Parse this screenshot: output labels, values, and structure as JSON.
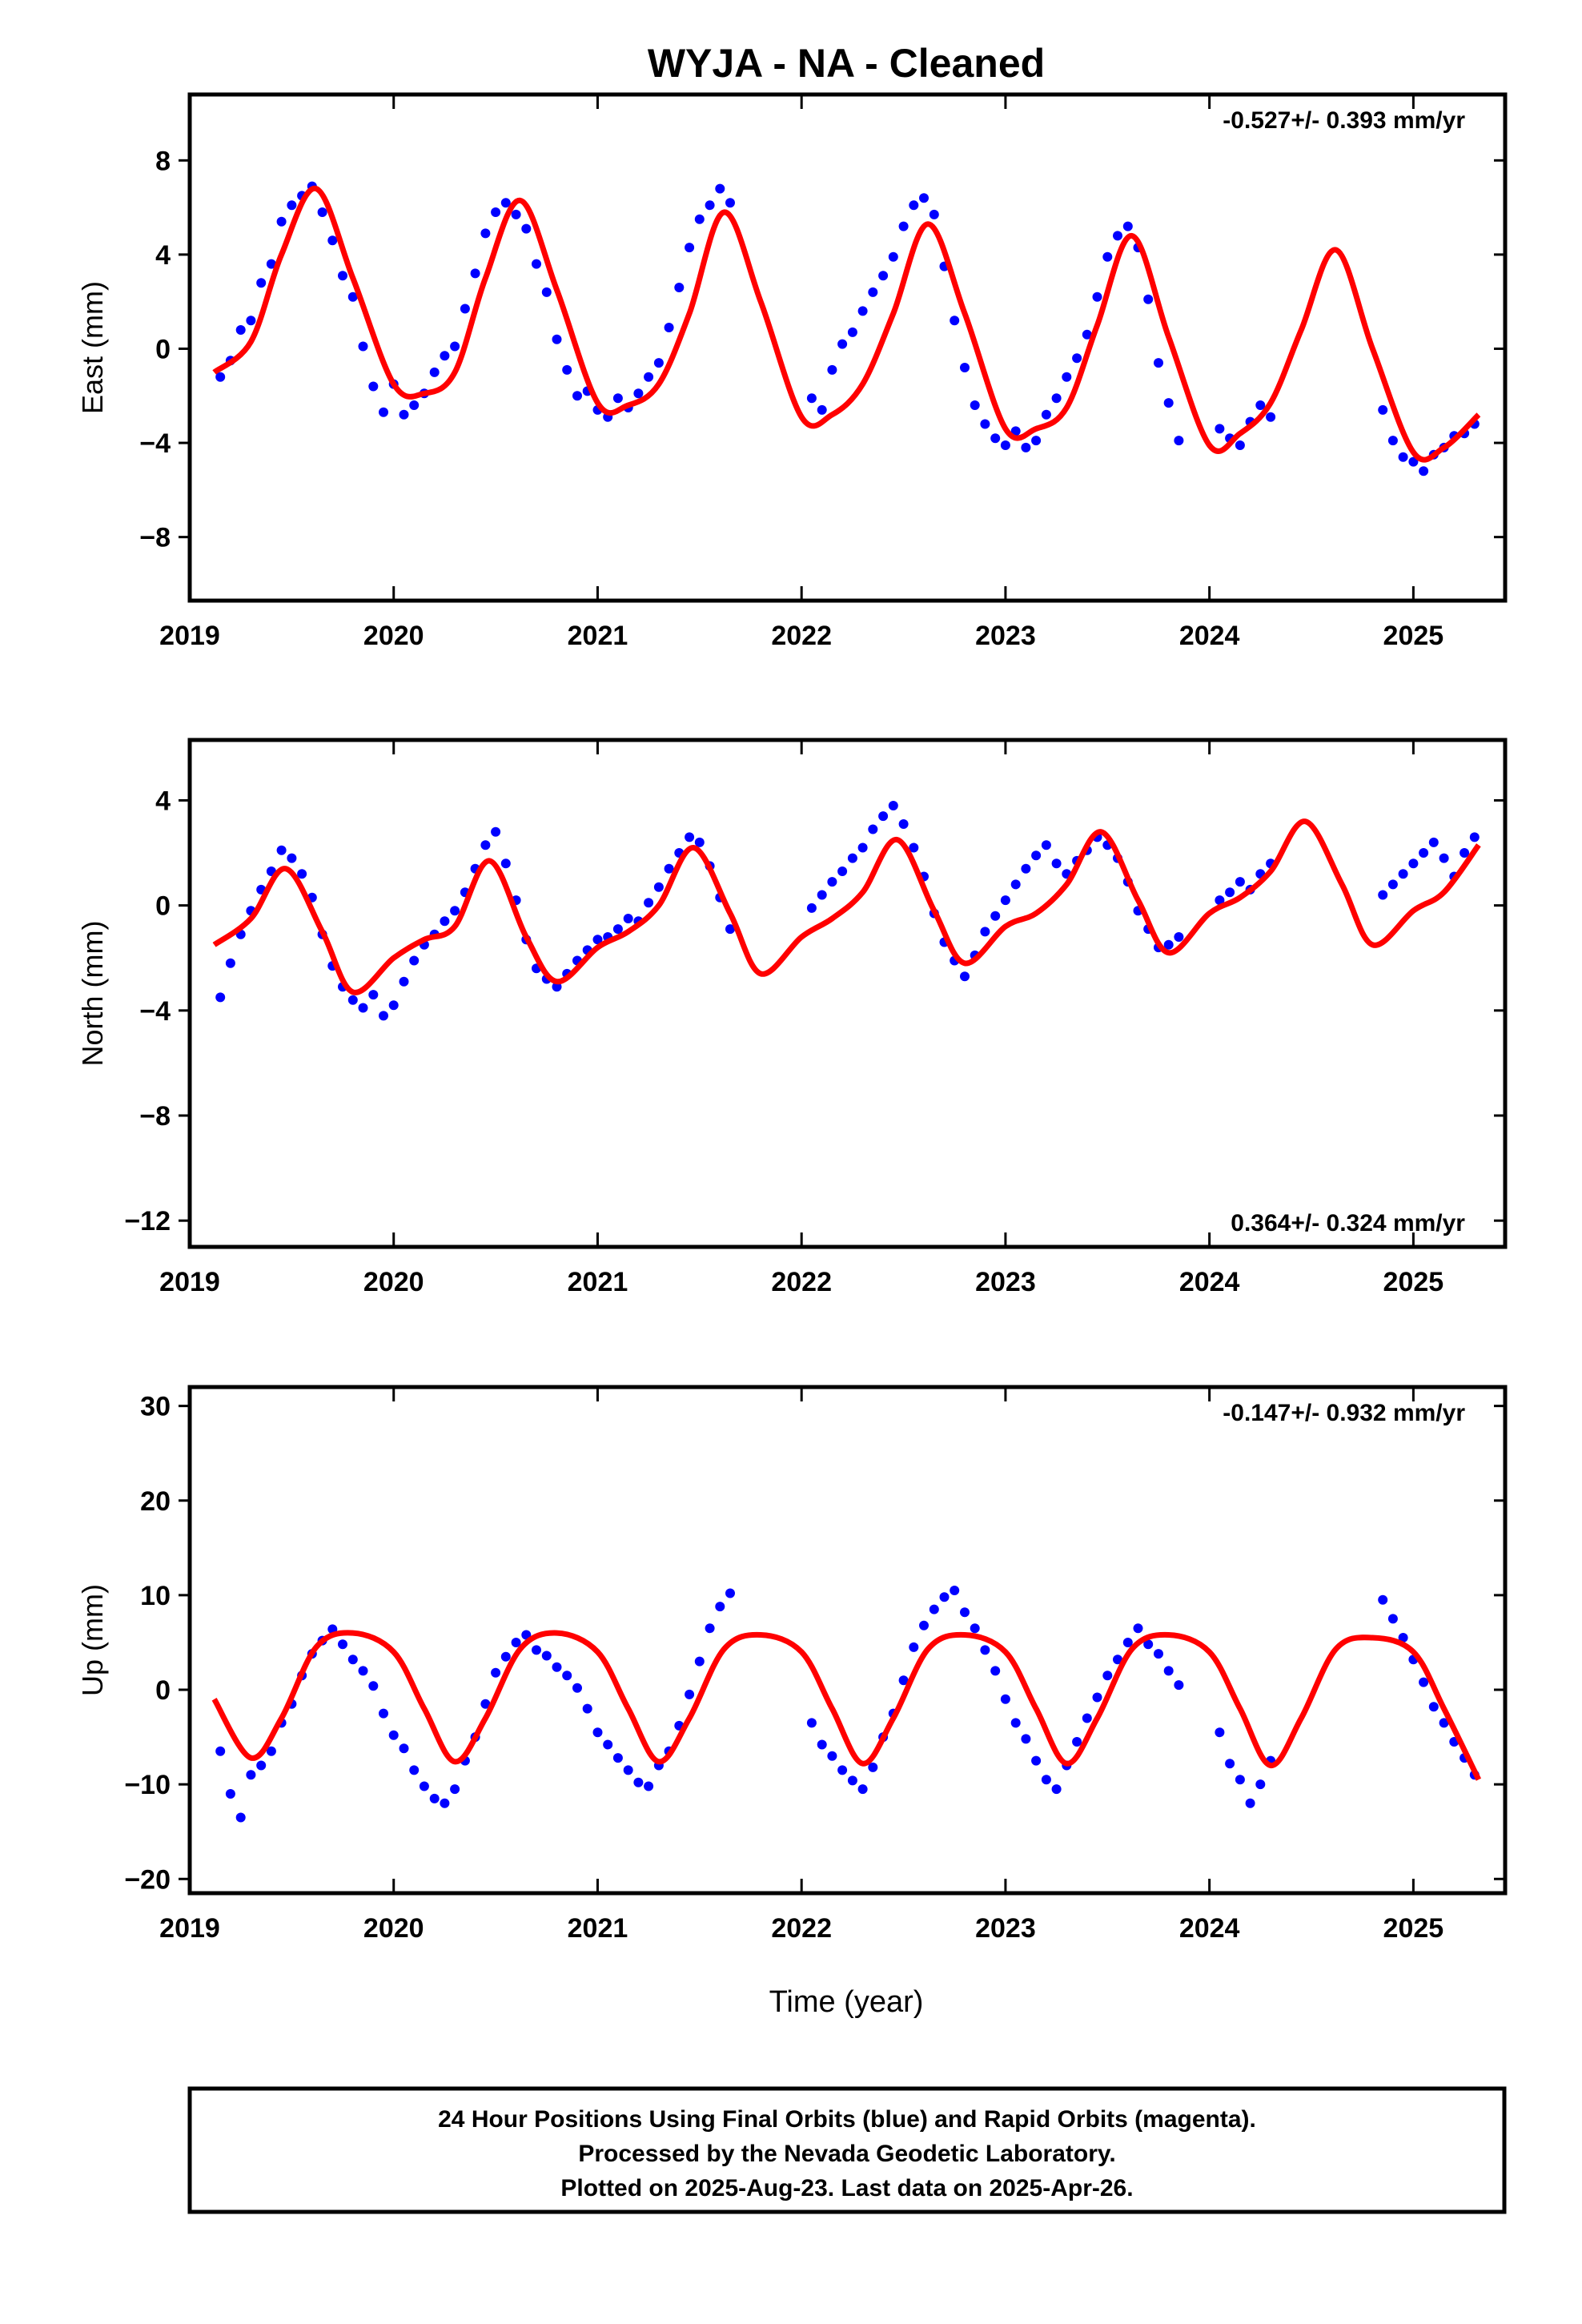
{
  "title": "WYJA  - NA - Cleaned",
  "xlabel": "Time (year)",
  "footer": {
    "line1": "24 Hour Positions Using Final Orbits (blue) and Rapid Orbits (magenta).",
    "line2": "Processed by the Nevada Geodetic Laboratory.",
    "line3": "Plotted on 2025-Aug-23. Last data on 2025-Apr-26."
  },
  "colors": {
    "points": "#0000ff",
    "model": "#ff0000",
    "axes": "#000000"
  },
  "chart_data": [
    {
      "type": "scatter",
      "ylabel": "East (mm)",
      "rate_text": "-0.527+/- 0.393 mm/yr",
      "rate_position": "top-right",
      "xlim": [
        2019.0,
        2025.45
      ],
      "ylim": [
        -10.7,
        10.8
      ],
      "x_ticks": [
        2019,
        2020,
        2021,
        2022,
        2023,
        2024,
        2025
      ],
      "y_ticks": [
        -8,
        -4,
        0,
        4,
        8
      ],
      "y_tick_labels": [
        "−8",
        "−4",
        "0",
        "4",
        "8"
      ],
      "model": {
        "x": [
          2019.12,
          2019.3,
          2019.45,
          2019.62,
          2019.8,
          2020.0,
          2020.15,
          2020.3,
          2020.45,
          2020.62,
          2020.8,
          2021.0,
          2021.15,
          2021.3,
          2021.45,
          2021.62,
          2021.8,
          2022.0,
          2022.15,
          2022.3,
          2022.45,
          2022.62,
          2022.8,
          2023.0,
          2023.15,
          2023.3,
          2023.45,
          2023.62,
          2023.8,
          2024.0,
          2024.15,
          2024.3,
          2024.45,
          2024.62,
          2024.8,
          2025.0,
          2025.15,
          2025.32
        ],
        "y": [
          -1.0,
          0.3,
          4.0,
          6.8,
          3.0,
          -1.5,
          -1.9,
          -1.0,
          3.0,
          6.3,
          2.5,
          -2.3,
          -2.4,
          -1.5,
          1.5,
          5.8,
          2.0,
          -2.9,
          -2.8,
          -1.5,
          1.5,
          5.3,
          1.5,
          -3.4,
          -3.4,
          -2.5,
          1.0,
          4.8,
          0.5,
          -4.1,
          -3.6,
          -2.3,
          0.8,
          4.2,
          0.0,
          -4.4,
          -4.2,
          -2.8
        ]
      },
      "scatter_points": {
        "x": [
          2019.15,
          2019.2,
          2019.25,
          2019.3,
          2019.35,
          2019.4,
          2019.45,
          2019.5,
          2019.55,
          2019.6,
          2019.65,
          2019.7,
          2019.75,
          2019.8,
          2019.85,
          2019.9,
          2019.95,
          2020.0,
          2020.05,
          2020.1,
          2020.15,
          2020.2,
          2020.25,
          2020.3,
          2020.35,
          2020.4,
          2020.45,
          2020.5,
          2020.55,
          2020.6,
          2020.65,
          2020.7,
          2020.75,
          2020.8,
          2020.85,
          2020.9,
          2020.95,
          2021.0,
          2021.05,
          2021.1,
          2021.15,
          2021.2,
          2021.25,
          2021.3,
          2021.35,
          2021.4,
          2021.45,
          2021.5,
          2021.55,
          2021.6,
          2021.65,
          2022.05,
          2022.1,
          2022.15,
          2022.2,
          2022.25,
          2022.3,
          2022.35,
          2022.4,
          2022.45,
          2022.5,
          2022.55,
          2022.6,
          2022.65,
          2022.7,
          2022.75,
          2022.8,
          2022.85,
          2022.9,
          2022.95,
          2023.0,
          2023.05,
          2023.1,
          2023.15,
          2023.2,
          2023.25,
          2023.3,
          2023.35,
          2023.4,
          2023.45,
          2023.5,
          2023.55,
          2023.6,
          2023.65,
          2023.7,
          2023.75,
          2023.8,
          2023.85,
          2024.05,
          2024.1,
          2024.15,
          2024.2,
          2024.25,
          2024.3,
          2024.85,
          2024.9,
          2024.95,
          2025.0,
          2025.05,
          2025.1,
          2025.15,
          2025.2,
          2025.25,
          2025.3
        ],
        "y": [
          -1.2,
          -0.5,
          0.8,
          1.2,
          2.8,
          3.6,
          5.4,
          6.1,
          6.5,
          6.9,
          5.8,
          4.6,
          3.1,
          2.2,
          0.1,
          -1.6,
          -2.7,
          -1.5,
          -2.8,
          -2.4,
          -1.9,
          -1.0,
          -0.3,
          0.1,
          1.7,
          3.2,
          4.9,
          5.8,
          6.2,
          5.7,
          5.1,
          3.6,
          2.4,
          0.4,
          -0.9,
          -2.0,
          -1.8,
          -2.6,
          -2.9,
          -2.1,
          -2.5,
          -1.9,
          -1.2,
          -0.6,
          0.9,
          2.6,
          4.3,
          5.5,
          6.1,
          6.8,
          6.2,
          -2.1,
          -2.6,
          -0.9,
          0.2,
          0.7,
          1.6,
          2.4,
          3.1,
          3.9,
          5.2,
          6.1,
          6.4,
          5.7,
          3.5,
          1.2,
          -0.8,
          -2.4,
          -3.2,
          -3.8,
          -4.1,
          -3.5,
          -4.2,
          -3.9,
          -2.8,
          -2.1,
          -1.2,
          -0.4,
          0.6,
          2.2,
          3.9,
          4.8,
          5.2,
          4.3,
          2.1,
          -0.6,
          -2.3,
          -3.9,
          -3.4,
          -3.8,
          -4.1,
          -3.1,
          -2.4,
          -2.9,
          -2.6,
          -3.9,
          -4.6,
          -4.8,
          -5.2,
          -4.5,
          -4.2,
          -3.7,
          -3.6,
          -3.2
        ]
      }
    },
    {
      "type": "scatter",
      "ylabel": "North (mm)",
      "rate_text": "0.364+/- 0.324 mm/yr",
      "rate_position": "bottom-right",
      "xlim": [
        2019.0,
        2025.45
      ],
      "ylim": [
        -13.0,
        6.3
      ],
      "x_ticks": [
        2019,
        2020,
        2021,
        2022,
        2023,
        2024,
        2025
      ],
      "y_ticks": [
        -12,
        -8,
        -4,
        0,
        4
      ],
      "y_tick_labels": [
        "−12",
        "−8",
        "−4",
        "0",
        "4"
      ],
      "model": {
        "x": [
          2019.12,
          2019.3,
          2019.47,
          2019.65,
          2019.8,
          2020.0,
          2020.15,
          2020.3,
          2020.47,
          2020.65,
          2020.8,
          2021.0,
          2021.15,
          2021.3,
          2021.47,
          2021.65,
          2021.8,
          2022.0,
          2022.15,
          2022.3,
          2022.47,
          2022.65,
          2022.8,
          2023.0,
          2023.15,
          2023.3,
          2023.47,
          2023.65,
          2023.8,
          2024.0,
          2024.15,
          2024.3,
          2024.47,
          2024.65,
          2024.8,
          2025.0,
          2025.15,
          2025.32
        ],
        "y": [
          -1.5,
          -0.5,
          1.4,
          -1.0,
          -3.3,
          -2.0,
          -1.3,
          -0.8,
          1.7,
          -1.2,
          -2.9,
          -1.6,
          -1.0,
          0.0,
          2.2,
          -0.3,
          -2.6,
          -1.2,
          -0.5,
          0.5,
          2.5,
          -0.2,
          -2.2,
          -0.8,
          -0.3,
          0.8,
          2.8,
          0.2,
          -1.8,
          -0.3,
          0.3,
          1.3,
          3.2,
          0.8,
          -1.5,
          -0.2,
          0.5,
          2.3
        ]
      },
      "scatter_points": {
        "x": [
          2019.15,
          2019.2,
          2019.25,
          2019.3,
          2019.35,
          2019.4,
          2019.45,
          2019.5,
          2019.55,
          2019.6,
          2019.65,
          2019.7,
          2019.75,
          2019.8,
          2019.85,
          2019.9,
          2019.95,
          2020.0,
          2020.05,
          2020.1,
          2020.15,
          2020.2,
          2020.25,
          2020.3,
          2020.35,
          2020.4,
          2020.45,
          2020.5,
          2020.55,
          2020.6,
          2020.65,
          2020.7,
          2020.75,
          2020.8,
          2020.85,
          2020.9,
          2020.95,
          2021.0,
          2021.05,
          2021.1,
          2021.15,
          2021.2,
          2021.25,
          2021.3,
          2021.35,
          2021.4,
          2021.45,
          2021.5,
          2021.55,
          2021.6,
          2021.65,
          2022.05,
          2022.1,
          2022.15,
          2022.2,
          2022.25,
          2022.3,
          2022.35,
          2022.4,
          2022.45,
          2022.5,
          2022.55,
          2022.6,
          2022.65,
          2022.7,
          2022.75,
          2022.8,
          2022.85,
          2022.9,
          2022.95,
          2023.0,
          2023.05,
          2023.1,
          2023.15,
          2023.2,
          2023.25,
          2023.3,
          2023.35,
          2023.4,
          2023.45,
          2023.5,
          2023.55,
          2023.6,
          2023.65,
          2023.7,
          2023.75,
          2023.8,
          2023.85,
          2024.05,
          2024.1,
          2024.15,
          2024.2,
          2024.25,
          2024.3,
          2024.85,
          2024.9,
          2024.95,
          2025.0,
          2025.05,
          2025.1,
          2025.15,
          2025.2,
          2025.25,
          2025.3
        ],
        "y": [
          -3.5,
          -2.2,
          -1.1,
          -0.2,
          0.6,
          1.3,
          2.1,
          1.8,
          1.2,
          0.3,
          -1.1,
          -2.3,
          -3.1,
          -3.6,
          -3.9,
          -3.4,
          -4.2,
          -3.8,
          -2.9,
          -2.1,
          -1.5,
          -1.1,
          -0.6,
          -0.2,
          0.5,
          1.4,
          2.3,
          2.8,
          1.6,
          0.2,
          -1.3,
          -2.4,
          -2.8,
          -3.1,
          -2.6,
          -2.1,
          -1.7,
          -1.3,
          -1.2,
          -0.9,
          -0.5,
          -0.6,
          0.1,
          0.7,
          1.4,
          2.0,
          2.6,
          2.4,
          1.5,
          0.3,
          -0.9,
          -0.1,
          0.4,
          0.9,
          1.3,
          1.8,
          2.2,
          2.9,
          3.4,
          3.8,
          3.1,
          2.2,
          1.1,
          -0.3,
          -1.4,
          -2.1,
          -2.7,
          -1.9,
          -1.0,
          -0.4,
          0.2,
          0.8,
          1.4,
          1.9,
          2.3,
          1.6,
          1.2,
          1.7,
          2.1,
          2.6,
          2.3,
          1.8,
          0.9,
          -0.2,
          -0.9,
          -1.6,
          -1.5,
          -1.2,
          0.2,
          0.5,
          0.9,
          0.6,
          1.2,
          1.6,
          0.4,
          0.8,
          1.2,
          1.6,
          2.0,
          2.4,
          1.8,
          1.1,
          2.0,
          2.6
        ]
      }
    },
    {
      "type": "scatter",
      "ylabel": "Up (mm)",
      "rate_text": "-0.147+/- 0.932 mm/yr",
      "rate_position": "top-right",
      "xlim": [
        2019.0,
        2025.45
      ],
      "ylim": [
        -21.5,
        32.0
      ],
      "x_ticks": [
        2019,
        2020,
        2021,
        2022,
        2023,
        2024,
        2025
      ],
      "y_ticks": [
        -20,
        -10,
        0,
        10,
        20,
        30
      ],
      "y_tick_labels": [
        "−20",
        "−10",
        "0",
        "10",
        "20",
        "30"
      ],
      "model": {
        "x": [
          2019.12,
          2019.3,
          2019.45,
          2019.62,
          2019.8,
          2020.0,
          2020.15,
          2020.3,
          2020.45,
          2020.62,
          2020.8,
          2021.0,
          2021.15,
          2021.3,
          2021.45,
          2021.62,
          2021.8,
          2022.0,
          2022.15,
          2022.3,
          2022.45,
          2022.62,
          2022.8,
          2023.0,
          2023.15,
          2023.3,
          2023.45,
          2023.62,
          2023.8,
          2024.0,
          2024.15,
          2024.3,
          2024.45,
          2024.62,
          2024.8,
          2025.0,
          2025.15,
          2025.32
        ],
        "y": [
          -1.0,
          -7.2,
          -3.0,
          4.5,
          6.0,
          4.0,
          -2.0,
          -7.6,
          -3.0,
          4.3,
          6.0,
          4.0,
          -2.0,
          -7.6,
          -3.0,
          4.3,
          5.8,
          4.0,
          -2.0,
          -7.8,
          -3.0,
          4.3,
          5.8,
          4.0,
          -2.0,
          -7.8,
          -3.0,
          4.3,
          5.8,
          4.0,
          -2.0,
          -8.0,
          -3.0,
          4.3,
          5.5,
          4.0,
          -2.0,
          -9.5
        ]
      },
      "scatter_points": {
        "x": [
          2019.15,
          2019.2,
          2019.25,
          2019.3,
          2019.35,
          2019.4,
          2019.45,
          2019.5,
          2019.55,
          2019.6,
          2019.65,
          2019.7,
          2019.75,
          2019.8,
          2019.85,
          2019.9,
          2019.95,
          2020.0,
          2020.05,
          2020.1,
          2020.15,
          2020.2,
          2020.25,
          2020.3,
          2020.35,
          2020.4,
          2020.45,
          2020.5,
          2020.55,
          2020.6,
          2020.65,
          2020.7,
          2020.75,
          2020.8,
          2020.85,
          2020.9,
          2020.95,
          2021.0,
          2021.05,
          2021.1,
          2021.15,
          2021.2,
          2021.25,
          2021.3,
          2021.35,
          2021.4,
          2021.45,
          2021.5,
          2021.55,
          2021.6,
          2021.65,
          2022.05,
          2022.1,
          2022.15,
          2022.2,
          2022.25,
          2022.3,
          2022.35,
          2022.4,
          2022.45,
          2022.5,
          2022.55,
          2022.6,
          2022.65,
          2022.7,
          2022.75,
          2022.8,
          2022.85,
          2022.9,
          2022.95,
          2023.0,
          2023.05,
          2023.1,
          2023.15,
          2023.2,
          2023.25,
          2023.3,
          2023.35,
          2023.4,
          2023.45,
          2023.5,
          2023.55,
          2023.6,
          2023.65,
          2023.7,
          2023.75,
          2023.8,
          2023.85,
          2024.05,
          2024.1,
          2024.15,
          2024.2,
          2024.25,
          2024.3,
          2024.85,
          2024.9,
          2024.95,
          2025.0,
          2025.05,
          2025.1,
          2025.15,
          2025.2,
          2025.25,
          2025.3
        ],
        "y": [
          -6.5,
          -11.0,
          -13.5,
          -9.0,
          -8.0,
          -6.5,
          -3.5,
          -1.5,
          1.5,
          3.8,
          5.2,
          6.4,
          4.8,
          3.2,
          2.0,
          0.4,
          -2.5,
          -4.8,
          -6.2,
          -8.5,
          -10.2,
          -11.5,
          -12.0,
          -10.5,
          -7.5,
          -5.0,
          -1.5,
          1.8,
          3.5,
          5.0,
          5.8,
          4.2,
          3.6,
          2.4,
          1.5,
          0.2,
          -2.0,
          -4.5,
          -5.8,
          -7.2,
          -8.5,
          -9.8,
          -10.2,
          -8.0,
          -6.5,
          -3.8,
          -0.5,
          3.0,
          6.5,
          8.8,
          10.2,
          -3.5,
          -5.8,
          -7.0,
          -8.5,
          -9.6,
          -10.5,
          -8.2,
          -5.0,
          -2.5,
          1.0,
          4.5,
          6.8,
          8.5,
          9.8,
          10.5,
          8.2,
          6.5,
          4.2,
          2.0,
          -1.0,
          -3.5,
          -5.2,
          -7.5,
          -9.5,
          -10.5,
          -8.0,
          -5.5,
          -3.0,
          -0.8,
          1.5,
          3.2,
          5.0,
          6.5,
          4.8,
          3.8,
          2.0,
          0.5,
          -4.5,
          -7.8,
          -9.5,
          -12.0,
          -10.0,
          -7.5,
          9.5,
          7.5,
          5.5,
          3.2,
          0.8,
          -1.8,
          -3.5,
          -5.5,
          -7.2,
          -9.0
        ]
      }
    }
  ]
}
